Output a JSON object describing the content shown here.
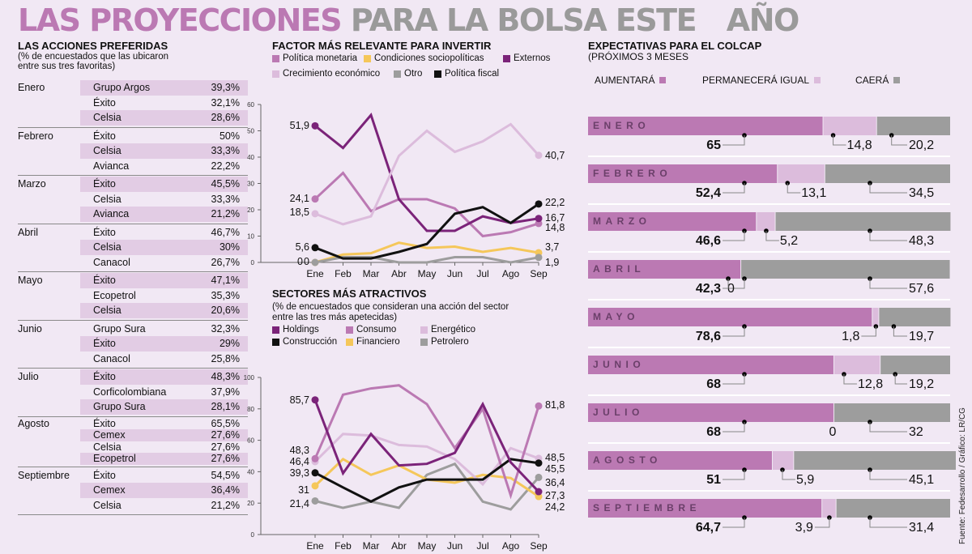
{
  "title": {
    "part1": "LAS PROYECCIONES",
    "part2": "PARA LA BOLSA ESTE",
    "part3": "AÑO"
  },
  "colors": {
    "background": "#f1e8f4",
    "purple_dark": "#7b2379",
    "purple_mid": "#bb79b3",
    "purple_light": "#dcbcdc",
    "yellow": "#f5c75a",
    "gray": "#9d9d9d",
    "black": "#111111",
    "row_shade": "#e2cce4"
  },
  "acciones": {
    "heading": "LAS ACCIONES PREFERIDAS",
    "subheading_line1": "(% de encuestados que las ubicaron",
    "subheading_line2": "entre sus tres favoritas)",
    "months": [
      {
        "month": "Enero",
        "rows": [
          {
            "name": "Grupo Argos",
            "pct": "39,3%"
          },
          {
            "name": "Éxito",
            "pct": "32,1%"
          },
          {
            "name": "Celsia",
            "pct": "28,6%"
          }
        ]
      },
      {
        "month": "Febrero",
        "rows": [
          {
            "name": "Éxito",
            "pct": "50%"
          },
          {
            "name": "Celsia",
            "pct": "33,3%"
          },
          {
            "name": "Avianca",
            "pct": "22,2%"
          }
        ]
      },
      {
        "month": "Marzo",
        "rows": [
          {
            "name": "Éxito",
            "pct": "45,5%"
          },
          {
            "name": "Celsia",
            "pct": "33,3%"
          },
          {
            "name": "Avianca",
            "pct": "21,2%"
          }
        ]
      },
      {
        "month": "Abril",
        "rows": [
          {
            "name": "Éxito",
            "pct": "46,7%"
          },
          {
            "name": "Celsia",
            "pct": "30%"
          },
          {
            "name": "Canacol",
            "pct": "26,7%"
          }
        ]
      },
      {
        "month": "Mayo",
        "rows": [
          {
            "name": "Éxito",
            "pct": "47,1%"
          },
          {
            "name": "Ecopetrol",
            "pct": "35,3%"
          },
          {
            "name": "Celsia",
            "pct": "20,6%"
          }
        ]
      },
      {
        "month": "Junio",
        "rows": [
          {
            "name": "Grupo Sura",
            "pct": "32,3%"
          },
          {
            "name": "Éxito",
            "pct": "29%"
          },
          {
            "name": "Canacol",
            "pct": "25,8%"
          }
        ]
      },
      {
        "month": "Julio",
        "rows": [
          {
            "name": "Éxito",
            "pct": "48,3%"
          },
          {
            "name": "Corficolombiana",
            "pct": "37,9%"
          },
          {
            "name": "Grupo Sura",
            "pct": "28,1%"
          }
        ]
      },
      {
        "month": "Agosto",
        "rows": [
          {
            "name": "Éxito",
            "pct": "65,5%"
          },
          {
            "name": "Cemex",
            "pct": "27,6%"
          },
          {
            "name": "Celsia",
            "pct": "27,6%"
          },
          {
            "name": "Ecopetrol",
            "pct": "27,6%"
          }
        ]
      },
      {
        "month": "Septiembre",
        "rows": [
          {
            "name": "Éxito",
            "pct": "54,5%"
          },
          {
            "name": "Cemex",
            "pct": "36,4%"
          },
          {
            "name": "Celsia",
            "pct": "21,2%"
          }
        ]
      }
    ]
  },
  "factor": {
    "heading": "FACTOR MÁS RELEVANTE PARA INVERTIR",
    "legend": [
      {
        "label": "Política monetaria",
        "color": "#bb79b3"
      },
      {
        "label": "Condiciones sociopolíticas",
        "color": "#f5c75a"
      },
      {
        "label": "Externos",
        "color": "#7b2379"
      },
      {
        "label": "Crecimiento económico",
        "color": "#dcbcdc"
      },
      {
        "label": "Otro",
        "color": "#9d9d9d"
      },
      {
        "label": "Política fiscal",
        "color": "#111111"
      }
    ]
  },
  "sectores": {
    "heading": "SECTORES MÁS ATRACTIVOS",
    "subheading_line1": "(% de encuestados que consideran una acción del sector",
    "subheading_line2": "entre las tres más apetecidas)",
    "legend": [
      {
        "label": "Holdings",
        "color": "#7b2379"
      },
      {
        "label": "Consumo",
        "color": "#bb79b3"
      },
      {
        "label": "Energético",
        "color": "#dcbcdc"
      },
      {
        "label": "Construcción",
        "color": "#111111"
      },
      {
        "label": "Financiero",
        "color": "#f5c75a"
      },
      {
        "label": "Petrolero",
        "color": "#9d9d9d"
      }
    ]
  },
  "colcap": {
    "heading": "EXPECTATIVAS PARA EL COLCAP",
    "subheading": "(PRÓXIMOS 3 MESES",
    "legend": [
      {
        "label": "AUMENTARÁ",
        "color": "#bb79b3"
      },
      {
        "label": "PERMANECERÁ IGUAL",
        "color": "#dcbcdc"
      },
      {
        "label": "CAERÁ",
        "color": "#9d9d9d"
      }
    ]
  },
  "source": "Fuente: Fedesarrollo / Gráfico: LR/CG",
  "chart_data": [
    {
      "type": "line",
      "title": "FACTOR MÁS RELEVANTE PARA INVERTIR",
      "categories": [
        "Ene",
        "Feb",
        "Mar",
        "Abr",
        "May",
        "Jun",
        "Jul",
        "Ago",
        "Sep"
      ],
      "ylim": [
        0,
        60
      ],
      "yticks": [
        0,
        10,
        20,
        30,
        40,
        50,
        60
      ],
      "grid": false,
      "legend": "top",
      "series": [
        {
          "name": "Política monetaria",
          "color": "#bb79b3",
          "values": [
            24.1,
            34,
            19.5,
            24,
            24,
            20.5,
            10,
            11.5,
            14.8
          ],
          "start_label": "24,1",
          "end_label": "14,8"
        },
        {
          "name": "Condiciones sociopolíticas",
          "color": "#f5c75a",
          "values": [
            0,
            3,
            3.5,
            7.5,
            5.5,
            6,
            4,
            5.5,
            3.7
          ],
          "start_label": "0",
          "end_label": "3,7"
        },
        {
          "name": "Externos",
          "color": "#7b2379",
          "values": [
            51.9,
            43.5,
            56,
            24,
            12,
            12,
            17.5,
            15,
            16.7
          ],
          "start_label": "51,9",
          "end_label": "16,7"
        },
        {
          "name": "Crecimiento económico",
          "color": "#dcbcdc",
          "values": [
            18.5,
            14.5,
            17.5,
            40.5,
            50,
            42,
            46,
            52.5,
            40.7
          ],
          "start_label": "18,5",
          "end_label": "40,7"
        },
        {
          "name": "Otro",
          "color": "#9d9d9d",
          "values": [
            0,
            2,
            2,
            0,
            0,
            2,
            2,
            0,
            1.9
          ],
          "start_label": "0",
          "end_label": "1,9"
        },
        {
          "name": "Política fiscal",
          "color": "#111111",
          "values": [
            5.6,
            1.5,
            1.5,
            4,
            7,
            18.5,
            21,
            15,
            22.2
          ],
          "start_label": "5,6",
          "end_label": "22,2"
        }
      ]
    },
    {
      "type": "line",
      "title": "SECTORES MÁS ATRACTIVOS",
      "categories": [
        "Ene",
        "Feb",
        "Mar",
        "Abr",
        "May",
        "Jun",
        "Jul",
        "Ago",
        "Sep"
      ],
      "ylim": [
        0,
        100
      ],
      "yticks": [
        0,
        20,
        40,
        60,
        80,
        100
      ],
      "grid": false,
      "legend": "top",
      "series": [
        {
          "name": "Petrolero",
          "color": "#9d9d9d",
          "values": [
            21.4,
            17,
            21,
            17,
            38,
            45,
            21,
            16,
            36.4
          ],
          "start_label": "21,4",
          "end_label": "36,4"
        },
        {
          "name": "Financiero",
          "color": "#f5c75a",
          "values": [
            31,
            48,
            38,
            44,
            35,
            33,
            38,
            36,
            24.2
          ],
          "start_label": "31",
          "end_label": "24,2"
        },
        {
          "name": "Energético",
          "color": "#dcbcdc",
          "values": [
            46.4,
            64,
            63,
            57,
            56,
            48,
            32,
            55,
            48.5
          ],
          "start_label": "46,4",
          "end_label": "48,5"
        },
        {
          "name": "Consumo",
          "color": "#bb79b3",
          "values": [
            48.3,
            89,
            93,
            95,
            83,
            55,
            80,
            25,
            81.8
          ],
          "start_label": "48,3",
          "end_label": "81,8"
        },
        {
          "name": "Construcción",
          "color": "#111111",
          "values": [
            39.3,
            30,
            21,
            30,
            35,
            35,
            35,
            48,
            45.5
          ],
          "start_label": "39,3",
          "end_label": "45,5"
        },
        {
          "name": "Holdings",
          "color": "#7b2379",
          "values": [
            85.7,
            39,
            64,
            44,
            45,
            52,
            83,
            46,
            27.3
          ],
          "start_label": "85,7",
          "end_label": "27,3"
        }
      ]
    },
    {
      "type": "bar",
      "stacked": true,
      "orientation": "horizontal",
      "title": "EXPECTATIVAS PARA EL COLCAP",
      "categories": [
        "ENERO",
        "FEBRERO",
        "MARZO",
        "ABRIL",
        "MAYO",
        "JUNIO",
        "JULIO",
        "AGOSTO",
        "SEPTIEMBRE"
      ],
      "series": [
        {
          "name": "AUMENTARÁ",
          "color": "#bb79b3",
          "values": [
            65,
            52.4,
            46.6,
            42.3,
            78.6,
            68,
            68,
            51,
            64.7
          ],
          "labels": [
            "65",
            "52,4",
            "46,6",
            "42,3",
            "78,6",
            "68",
            "68",
            "51",
            "64,7"
          ]
        },
        {
          "name": "PERMANECERÁ IGUAL",
          "color": "#dcbcdc",
          "values": [
            14.8,
            13.1,
            5.2,
            0,
            1.8,
            12.8,
            0,
            5.9,
            3.9
          ],
          "labels": [
            "14,8",
            "13,1",
            "5,2",
            "0",
            "1,8",
            "12,8",
            "0",
            "5,9",
            "3,9"
          ]
        },
        {
          "name": "CAERÁ",
          "color": "#9d9d9d",
          "values": [
            20.2,
            34.5,
            48.3,
            57.6,
            19.7,
            19.2,
            32,
            45.1,
            31.4
          ],
          "labels": [
            "20,2",
            "34,5",
            "48,3",
            "57,6",
            "19,7",
            "19,2",
            "32",
            "45,1",
            "31,4"
          ]
        }
      ]
    }
  ]
}
